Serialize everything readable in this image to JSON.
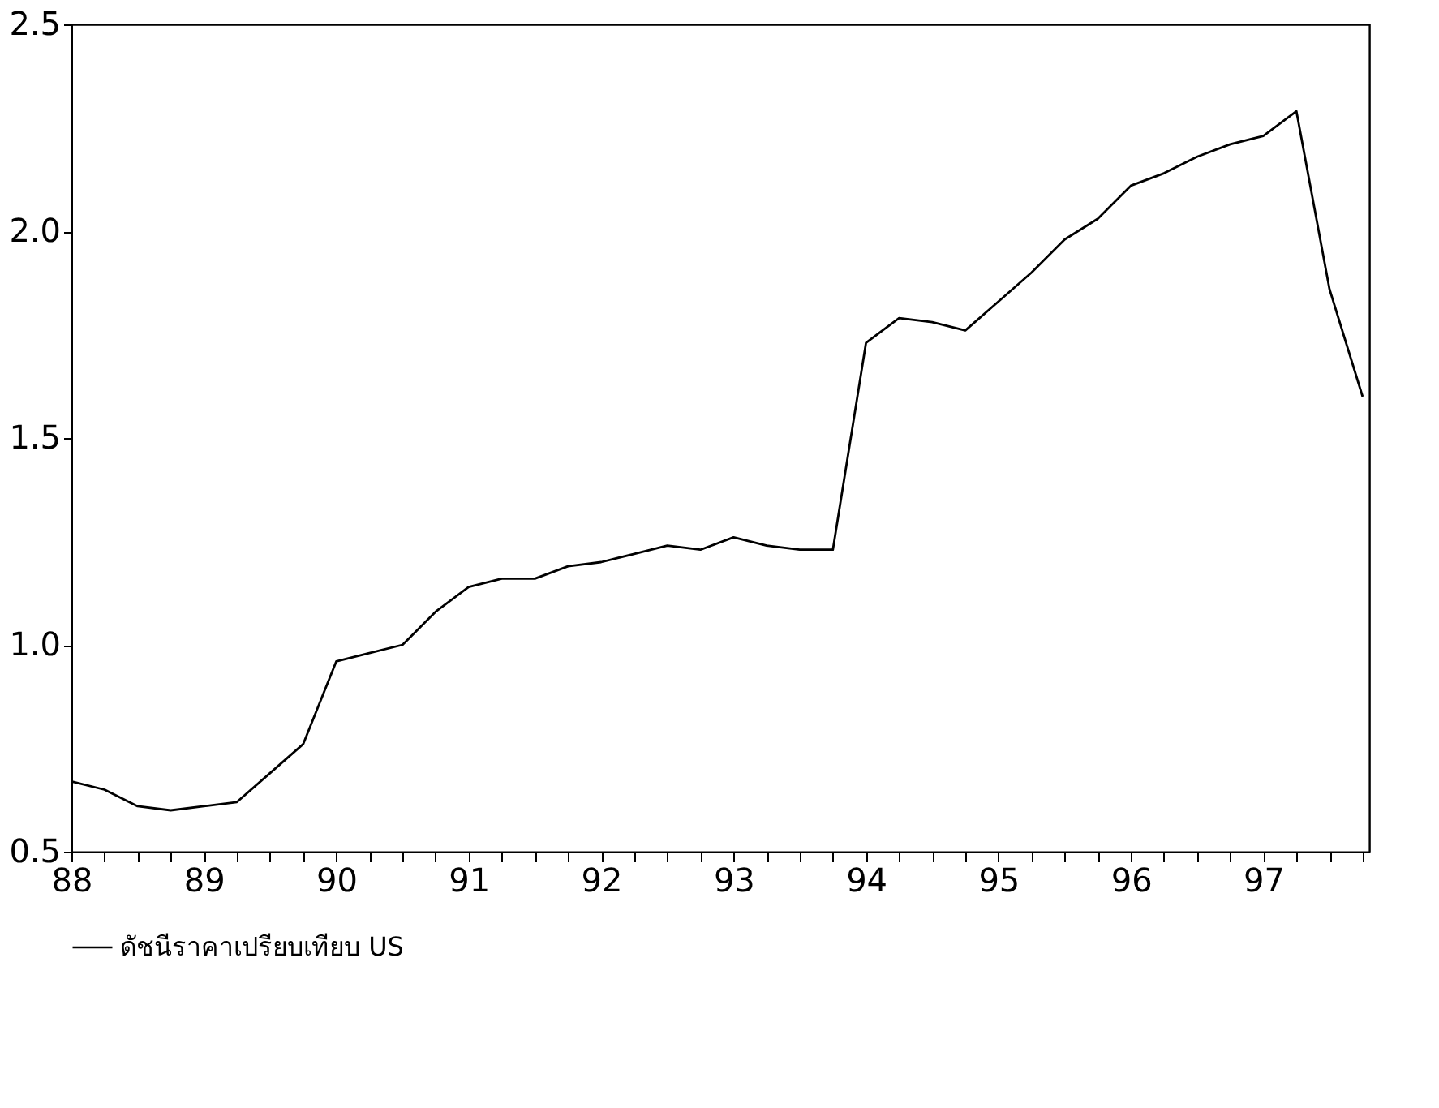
{
  "chart_data": {
    "type": "line",
    "x": [
      1988.0,
      1988.25,
      1988.5,
      1988.75,
      1989.0,
      1989.25,
      1989.5,
      1989.75,
      1990.0,
      1990.25,
      1990.5,
      1990.75,
      1991.0,
      1991.25,
      1991.5,
      1991.75,
      1992.0,
      1992.25,
      1992.5,
      1992.75,
      1993.0,
      1993.25,
      1993.5,
      1993.75,
      1994.0,
      1994.25,
      1994.5,
      1994.75,
      1995.0,
      1995.25,
      1995.5,
      1995.75,
      1996.0,
      1996.25,
      1996.5,
      1996.75,
      1997.0,
      1997.25,
      1997.5,
      1997.75
    ],
    "series": [
      {
        "name": "ดัชนีราคาเปรียบเทียบ US",
        "color": "#000000",
        "values": [
          0.67,
          0.65,
          0.61,
          0.6,
          0.61,
          0.62,
          0.69,
          0.76,
          0.96,
          0.98,
          1.0,
          1.08,
          1.14,
          1.16,
          1.16,
          1.19,
          1.2,
          1.22,
          1.24,
          1.23,
          1.26,
          1.24,
          1.23,
          1.23,
          1.73,
          1.79,
          1.78,
          1.76,
          1.83,
          1.9,
          1.98,
          2.03,
          2.11,
          2.14,
          2.18,
          2.21,
          2.23,
          2.29,
          1.86,
          1.6
        ]
      }
    ],
    "xlim": [
      1988,
      1997.8
    ],
    "xticks": [
      {
        "value": 1988,
        "label": "88"
      },
      {
        "value": 1988.25,
        "label": null
      },
      {
        "value": 1988.5,
        "label": null
      },
      {
        "value": 1988.75,
        "label": null
      },
      {
        "value": 1989,
        "label": "89"
      },
      {
        "value": 1989.25,
        "label": null
      },
      {
        "value": 1989.5,
        "label": null
      },
      {
        "value": 1989.75,
        "label": null
      },
      {
        "value": 1990,
        "label": "90"
      },
      {
        "value": 1990.25,
        "label": null
      },
      {
        "value": 1990.5,
        "label": null
      },
      {
        "value": 1990.75,
        "label": null
      },
      {
        "value": 1991,
        "label": "91"
      },
      {
        "value": 1991.25,
        "label": null
      },
      {
        "value": 1991.5,
        "label": null
      },
      {
        "value": 1991.75,
        "label": null
      },
      {
        "value": 1992,
        "label": "92"
      },
      {
        "value": 1992.25,
        "label": null
      },
      {
        "value": 1992.5,
        "label": null
      },
      {
        "value": 1992.75,
        "label": null
      },
      {
        "value": 1993,
        "label": "93"
      },
      {
        "value": 1993.25,
        "label": null
      },
      {
        "value": 1993.5,
        "label": null
      },
      {
        "value": 1993.75,
        "label": null
      },
      {
        "value": 1994,
        "label": "94"
      },
      {
        "value": 1994.25,
        "label": null
      },
      {
        "value": 1994.5,
        "label": null
      },
      {
        "value": 1994.75,
        "label": null
      },
      {
        "value": 1995,
        "label": "95"
      },
      {
        "value": 1995.25,
        "label": null
      },
      {
        "value": 1995.5,
        "label": null
      },
      {
        "value": 1995.75,
        "label": null
      },
      {
        "value": 1996,
        "label": "96"
      },
      {
        "value": 1996.25,
        "label": null
      },
      {
        "value": 1996.5,
        "label": null
      },
      {
        "value": 1996.75,
        "label": null
      },
      {
        "value": 1997,
        "label": "97"
      },
      {
        "value": 1997.25,
        "label": null
      },
      {
        "value": 1997.5,
        "label": null
      },
      {
        "value": 1997.75,
        "label": null
      }
    ],
    "ylim": [
      0.5,
      2.5
    ],
    "yticks": [
      {
        "value": 0.5,
        "label": "0.5"
      },
      {
        "value": 1.0,
        "label": "1.0"
      },
      {
        "value": 1.5,
        "label": "1.5"
      },
      {
        "value": 2.0,
        "label": "2.0"
      },
      {
        "value": 2.5,
        "label": "2.5"
      }
    ],
    "legend": "bottom",
    "grid": false,
    "line_style": "solid",
    "marker": "none"
  }
}
